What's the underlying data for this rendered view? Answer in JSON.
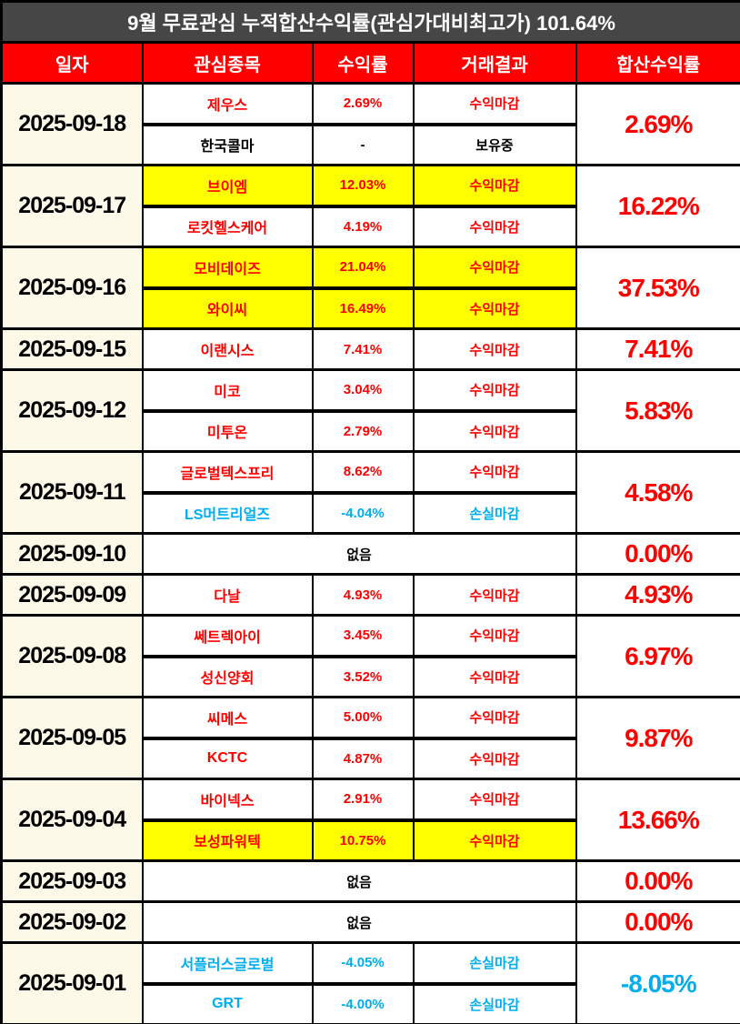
{
  "title": "9월 무료관심 누적합산수익률(관심가대비최고가) 101.64%",
  "header": {
    "columns": [
      "일자",
      "관심종목",
      "수익률",
      "거래결과",
      "합산수익률"
    ]
  },
  "colors": {
    "red": "#FF0000",
    "blue": "#00AEEF",
    "black": "#000000",
    "yellow": "#FFFF00",
    "white": "#FFFFFF",
    "title_bg": "#464646",
    "header_bg": "#FF0000",
    "date_bg": "#FDF9E8",
    "border": "#000000"
  },
  "rows": [
    {
      "date": "2025-09-18",
      "total": "2.69%",
      "total_color": "red",
      "stocks": [
        {
          "name": "제우스",
          "return": "2.69%",
          "result": "수익마감",
          "color": "red",
          "bg": "white"
        },
        {
          "name": "한국콜마",
          "return": "-",
          "result": "보유중",
          "color": "black",
          "bg": "white"
        }
      ]
    },
    {
      "date": "2025-09-17",
      "total": "16.22%",
      "total_color": "red",
      "stocks": [
        {
          "name": "브이엠",
          "return": "12.03%",
          "result": "수익마감",
          "color": "red",
          "bg": "yellow"
        },
        {
          "name": "로킷헬스케어",
          "return": "4.19%",
          "result": "수익마감",
          "color": "red",
          "bg": "white"
        }
      ]
    },
    {
      "date": "2025-09-16",
      "total": "37.53%",
      "total_color": "red",
      "stocks": [
        {
          "name": "모비데이즈",
          "return": "21.04%",
          "result": "수익마감",
          "color": "red",
          "bg": "yellow"
        },
        {
          "name": "와이씨",
          "return": "16.49%",
          "result": "수익마감",
          "color": "red",
          "bg": "yellow"
        }
      ]
    },
    {
      "date": "2025-09-15",
      "total": "7.41%",
      "total_color": "red",
      "stocks": [
        {
          "name": "이랜시스",
          "return": "7.41%",
          "result": "수익마감",
          "color": "red",
          "bg": "white"
        }
      ]
    },
    {
      "date": "2025-09-12",
      "total": "5.83%",
      "total_color": "red",
      "stocks": [
        {
          "name": "미코",
          "return": "3.04%",
          "result": "수익마감",
          "color": "red",
          "bg": "white"
        },
        {
          "name": "미투온",
          "return": "2.79%",
          "result": "수익마감",
          "color": "red",
          "bg": "white"
        }
      ]
    },
    {
      "date": "2025-09-11",
      "total": "4.58%",
      "total_color": "red",
      "stocks": [
        {
          "name": "글로벌텍스프리",
          "return": "8.62%",
          "result": "수익마감",
          "color": "red",
          "bg": "white"
        },
        {
          "name": "LS머트리얼즈",
          "return": "-4.04%",
          "result": "손실마감",
          "color": "blue",
          "bg": "white"
        }
      ]
    },
    {
      "date": "2025-09-10",
      "total": "0.00%",
      "total_color": "red",
      "none_label": "없음"
    },
    {
      "date": "2025-09-09",
      "total": "4.93%",
      "total_color": "red",
      "stocks": [
        {
          "name": "다날",
          "return": "4.93%",
          "result": "수익마감",
          "color": "red",
          "bg": "white"
        }
      ]
    },
    {
      "date": "2025-09-08",
      "total": "6.97%",
      "total_color": "red",
      "stocks": [
        {
          "name": "쎄트렉아이",
          "return": "3.45%",
          "result": "수익마감",
          "color": "red",
          "bg": "white"
        },
        {
          "name": "성신양회",
          "return": "3.52%",
          "result": "수익마감",
          "color": "red",
          "bg": "white"
        }
      ]
    },
    {
      "date": "2025-09-05",
      "total": "9.87%",
      "total_color": "red",
      "stocks": [
        {
          "name": "씨메스",
          "return": "5.00%",
          "result": "수익마감",
          "color": "red",
          "bg": "white"
        },
        {
          "name": "KCTC",
          "return": "4.87%",
          "result": "수익마감",
          "color": "red",
          "bg": "white"
        }
      ]
    },
    {
      "date": "2025-09-04",
      "total": "13.66%",
      "total_color": "red",
      "stocks": [
        {
          "name": "바이넥스",
          "return": "2.91%",
          "result": "수익마감",
          "color": "red",
          "bg": "white"
        },
        {
          "name": "보성파워텍",
          "return": "10.75%",
          "result": "수익마감",
          "color": "red",
          "bg": "yellow"
        }
      ]
    },
    {
      "date": "2025-09-03",
      "total": "0.00%",
      "total_color": "red",
      "none_label": "없음"
    },
    {
      "date": "2025-09-02",
      "total": "0.00%",
      "total_color": "red",
      "none_label": "없음"
    },
    {
      "date": "2025-09-01",
      "total": "-8.05%",
      "total_color": "blue",
      "stocks": [
        {
          "name": "서플러스글로벌",
          "return": "-4.05%",
          "result": "손실마감",
          "color": "blue",
          "bg": "white"
        },
        {
          "name": "GRT",
          "return": "-4.00%",
          "result": "손실마감",
          "color": "blue",
          "bg": "white"
        }
      ]
    }
  ]
}
